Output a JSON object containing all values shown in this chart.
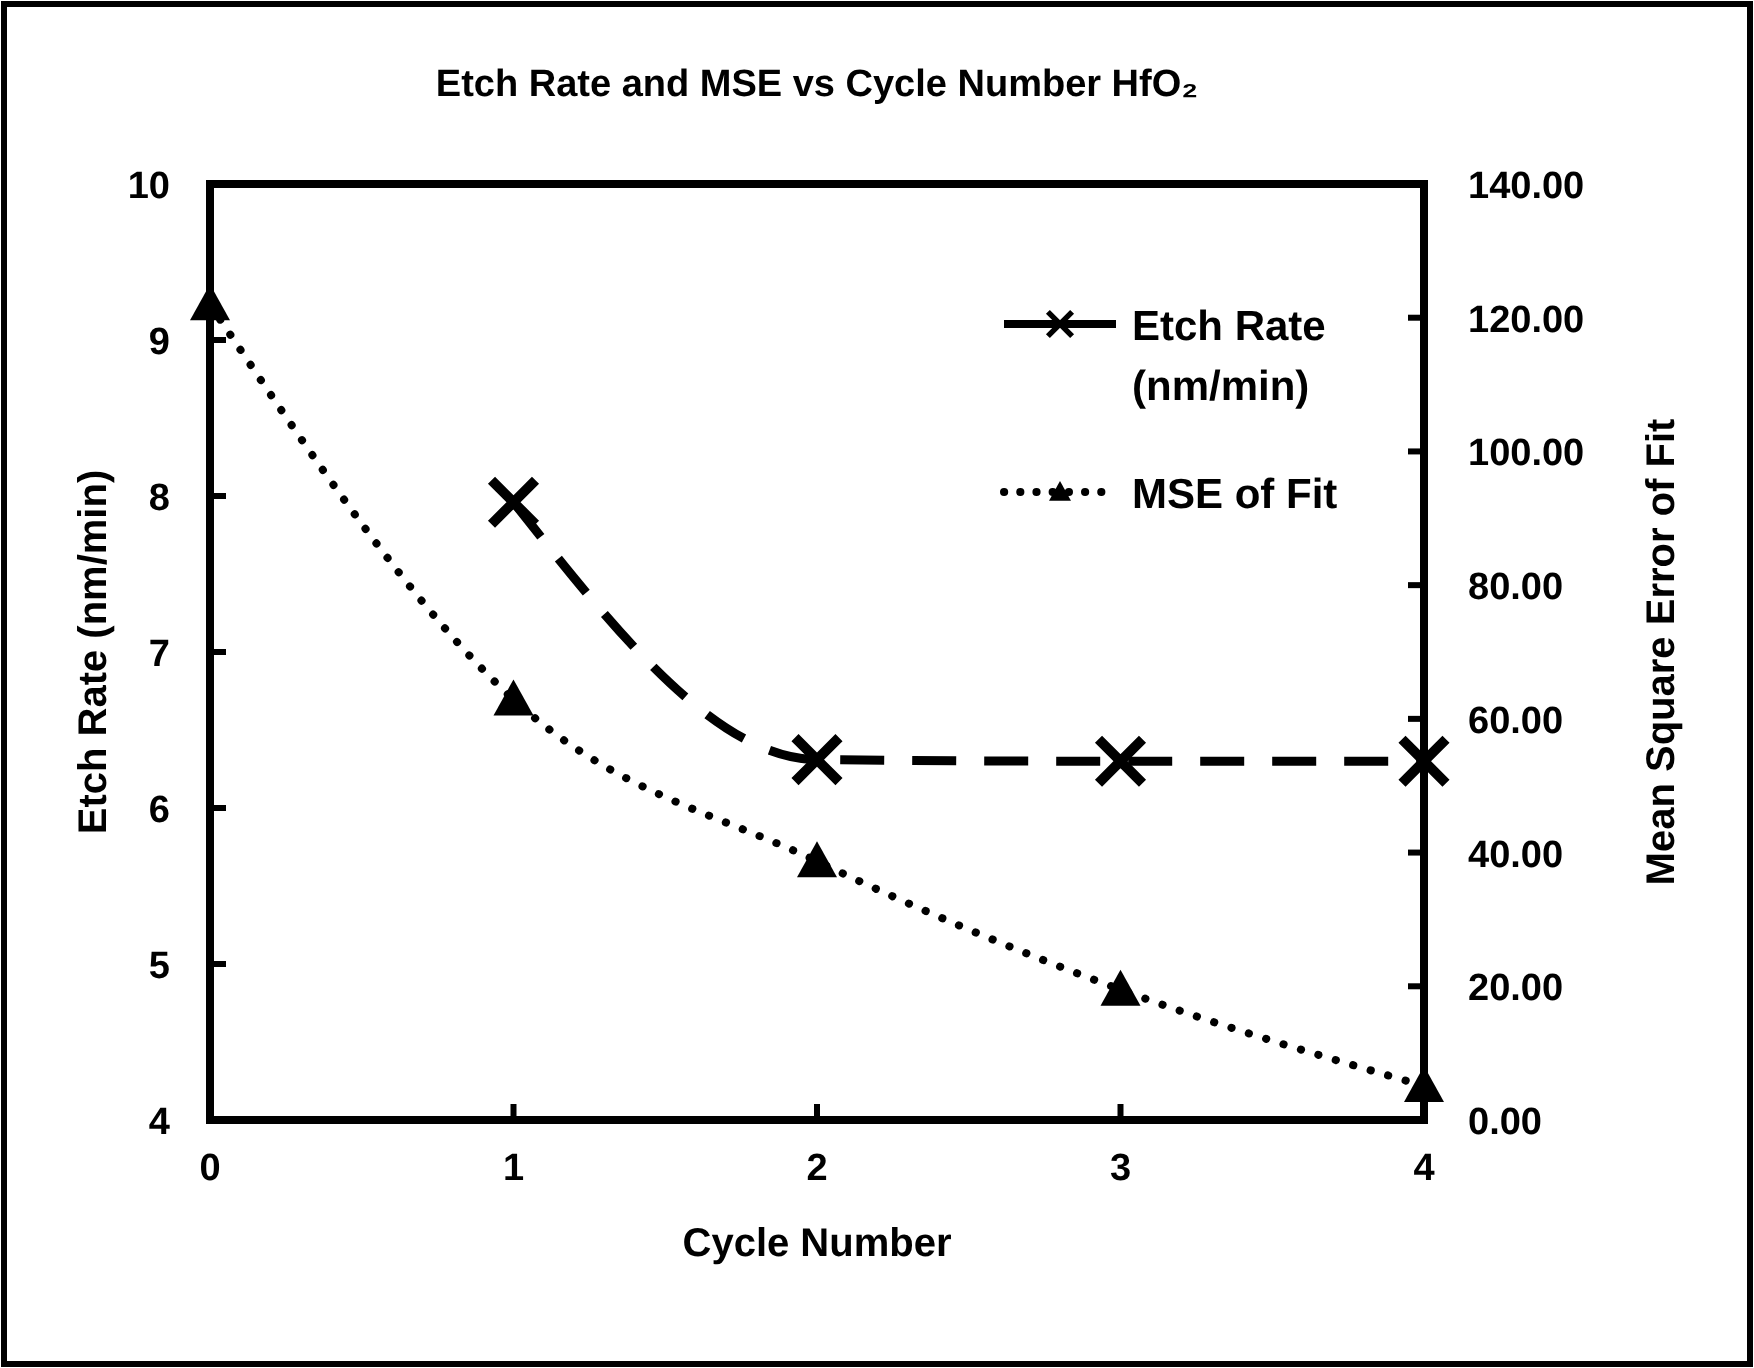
{
  "chart_data": {
    "type": "line",
    "title": "Etch Rate and MSE vs Cycle Number HfO₂",
    "xlabel": "Cycle Number",
    "ylabel": "Etch Rate (nm/min)",
    "y2label": "Mean Square Error of Fit",
    "xlim": [
      0,
      4
    ],
    "xticks": [
      0,
      1,
      2,
      3,
      4
    ],
    "ylim": [
      4,
      10
    ],
    "yticks": [
      4,
      5,
      6,
      7,
      8,
      9,
      10
    ],
    "y2lim": [
      0,
      140
    ],
    "y2ticks": [
      {
        "value": 0,
        "label": "0.00"
      },
      {
        "value": 20,
        "label": "20.00"
      },
      {
        "value": 40,
        "label": "40.00"
      },
      {
        "value": 60,
        "label": "60.00"
      },
      {
        "value": 80,
        "label": "80.00"
      },
      {
        "value": 100,
        "label": "100.00"
      },
      {
        "value": 120,
        "label": "120.00"
      },
      {
        "value": 140,
        "label": "140.00"
      }
    ],
    "grid": false,
    "legend": "top right",
    "series": [
      {
        "name": "Etch Rate (nm/min)",
        "color": "#000000",
        "x": [
          1,
          2,
          3,
          4
        ],
        "values": [
          7.96,
          6.31,
          6.3,
          6.3
        ],
        "marker": "cross",
        "line_style": "dashed"
      },
      {
        "name": "MSE of Fit",
        "color": "#000000",
        "x": [
          0,
          1,
          2,
          3,
          4
        ],
        "values": [
          122,
          62.9,
          38.7,
          19.5,
          5.1
        ],
        "marker": "triangle",
        "line_style": "dotted",
        "axis": "y2"
      }
    ]
  }
}
